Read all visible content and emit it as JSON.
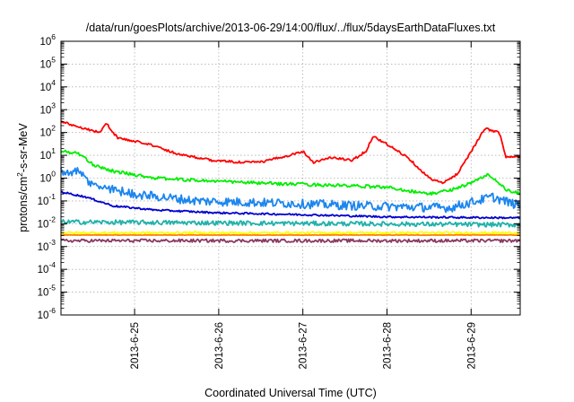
{
  "chart_data": {
    "type": "line",
    "title": "/data/run/goesPlots/archive/2013-06-29/14:00/flux/../flux/5daysEarthDataFluxes.txt",
    "xlabel": "Coordinated Universal Time (UTC)",
    "ylabel": "protons/cm²-s-sr-MeV",
    "ylabel_parts": {
      "pre": "protons/cm",
      "sup": "2",
      "post": "-s-sr-MeV"
    },
    "y_scale": "log",
    "ylim": [
      1e-06,
      1000000.0
    ],
    "y_ticks": [
      {
        "base": "10",
        "exp": "-6",
        "value": 1e-06
      },
      {
        "base": "10",
        "exp": "-5",
        "value": 1e-05
      },
      {
        "base": "10",
        "exp": "-4",
        "value": 0.0001
      },
      {
        "base": "10",
        "exp": "-3",
        "value": 0.001
      },
      {
        "base": "10",
        "exp": "-2",
        "value": 0.01
      },
      {
        "base": "10",
        "exp": "-1",
        "value": 0.1
      },
      {
        "base": "10",
        "exp": "0",
        "value": 1
      },
      {
        "base": "10",
        "exp": "1",
        "value": 10
      },
      {
        "base": "10",
        "exp": "2",
        "value": 100
      },
      {
        "base": "10",
        "exp": "3",
        "value": 1000
      },
      {
        "base": "10",
        "exp": "4",
        "value": 10000
      },
      {
        "base": "10",
        "exp": "5",
        "value": 100000
      },
      {
        "base": "10",
        "exp": "6",
        "value": 1000000
      }
    ],
    "xlim": [
      "2013-06-24 03:00",
      "2013-06-29 14:00"
    ],
    "x_ticks": [
      "2013-6-25",
      "2013-6-26",
      "2013-6-27",
      "2013-6-28",
      "2013-6-29"
    ],
    "x_tick_values": [
      "2013-06-25 00:00",
      "2013-06-26 00:00",
      "2013-06-27 00:00",
      "2013-06-28 00:00",
      "2013-06-29 00:00"
    ],
    "grid": true,
    "legend": "none",
    "series": [
      {
        "color": "#ff0000",
        "noise": 0.05,
        "points": [
          [
            "2013-06-24 03:00",
            300
          ],
          [
            "2013-06-24 08:00",
            180
          ],
          [
            "2013-06-24 14:00",
            100
          ],
          [
            "2013-06-24 16:00",
            250
          ],
          [
            "2013-06-24 19:00",
            60
          ],
          [
            "2013-06-25 00:00",
            40
          ],
          [
            "2013-06-25 03:00",
            35
          ],
          [
            "2013-06-25 12:00",
            12
          ],
          [
            "2013-06-25 22:00",
            6
          ],
          [
            "2013-06-26 06:00",
            5
          ],
          [
            "2013-06-26 12:00",
            5
          ],
          [
            "2013-06-26 20:00",
            10
          ],
          [
            "2013-06-27 00:00",
            15
          ],
          [
            "2013-06-27 03:00",
            5
          ],
          [
            "2013-06-27 08:00",
            8
          ],
          [
            "2013-06-27 14:00",
            6
          ],
          [
            "2013-06-27 18:00",
            15
          ],
          [
            "2013-06-27 20:00",
            70
          ],
          [
            "2013-06-28 00:00",
            30
          ],
          [
            "2013-06-28 06:00",
            8
          ],
          [
            "2013-06-28 12:00",
            1
          ],
          [
            "2013-06-28 16:00",
            0.6
          ],
          [
            "2013-06-28 20:00",
            1.5
          ],
          [
            "2013-06-29 00:00",
            15
          ],
          [
            "2013-06-29 04:00",
            150
          ],
          [
            "2013-06-29 08:00",
            100
          ],
          [
            "2013-06-29 10:00",
            8
          ],
          [
            "2013-06-29 14:00",
            9
          ]
        ]
      },
      {
        "color": "#00ee00",
        "noise": 0.07,
        "points": [
          [
            "2013-06-24 03:00",
            15
          ],
          [
            "2013-06-24 08:00",
            12
          ],
          [
            "2013-06-24 12:00",
            4
          ],
          [
            "2013-06-24 18:00",
            2
          ],
          [
            "2013-06-25 06:00",
            1
          ],
          [
            "2013-06-25 18:00",
            0.8
          ],
          [
            "2013-06-26 12:00",
            0.6
          ],
          [
            "2013-06-27 06:00",
            0.5
          ],
          [
            "2013-06-28 00:00",
            0.4
          ],
          [
            "2013-06-28 12:00",
            0.2
          ],
          [
            "2013-06-28 18:00",
            0.3
          ],
          [
            "2013-06-29 00:00",
            0.6
          ],
          [
            "2013-06-29 05:00",
            1.5
          ],
          [
            "2013-06-29 10:00",
            0.3
          ],
          [
            "2013-06-29 14:00",
            0.2
          ]
        ]
      },
      {
        "color": "#1c86ee",
        "noise": 0.2,
        "points": [
          [
            "2013-06-24 03:00",
            2
          ],
          [
            "2013-06-24 08:00",
            1.8
          ],
          [
            "2013-06-24 12:00",
            0.5
          ],
          [
            "2013-06-25 00:00",
            0.2
          ],
          [
            "2013-06-25 18:00",
            0.1
          ],
          [
            "2013-06-26 18:00",
            0.08
          ],
          [
            "2013-06-27 18:00",
            0.06
          ],
          [
            "2013-06-28 18:00",
            0.05
          ],
          [
            "2013-06-29 06:00",
            0.15
          ],
          [
            "2013-06-29 14:00",
            0.06
          ]
        ]
      },
      {
        "color": "#0000cd",
        "noise": 0.04,
        "points": [
          [
            "2013-06-24 03:00",
            0.25
          ],
          [
            "2013-06-24 10:00",
            0.15
          ],
          [
            "2013-06-24 18:00",
            0.06
          ],
          [
            "2013-06-25 06:00",
            0.04
          ],
          [
            "2013-06-26 00:00",
            0.03
          ],
          [
            "2013-06-27 00:00",
            0.025
          ],
          [
            "2013-06-28 00:00",
            0.02
          ],
          [
            "2013-06-29 14:00",
            0.018
          ]
        ]
      },
      {
        "color": "#20b2aa",
        "noise": 0.1,
        "points": [
          [
            "2013-06-24 03:00",
            0.012
          ],
          [
            "2013-06-29 14:00",
            0.009
          ]
        ]
      },
      {
        "color": "#ffff00",
        "noise": 0.05,
        "points": [
          [
            "2013-06-24 03:00",
            0.004
          ],
          [
            "2013-06-29 14:00",
            0.004
          ]
        ]
      },
      {
        "color": "#ff7f00",
        "noise": 0.01,
        "points": [
          [
            "2013-06-24 03:00",
            0.0032
          ],
          [
            "2013-06-29 14:00",
            0.0032
          ]
        ]
      },
      {
        "color": "#8b3a62",
        "noise": 0.07,
        "points": [
          [
            "2013-06-24 03:00",
            0.0018
          ],
          [
            "2013-06-29 14:00",
            0.0018
          ]
        ]
      }
    ]
  }
}
